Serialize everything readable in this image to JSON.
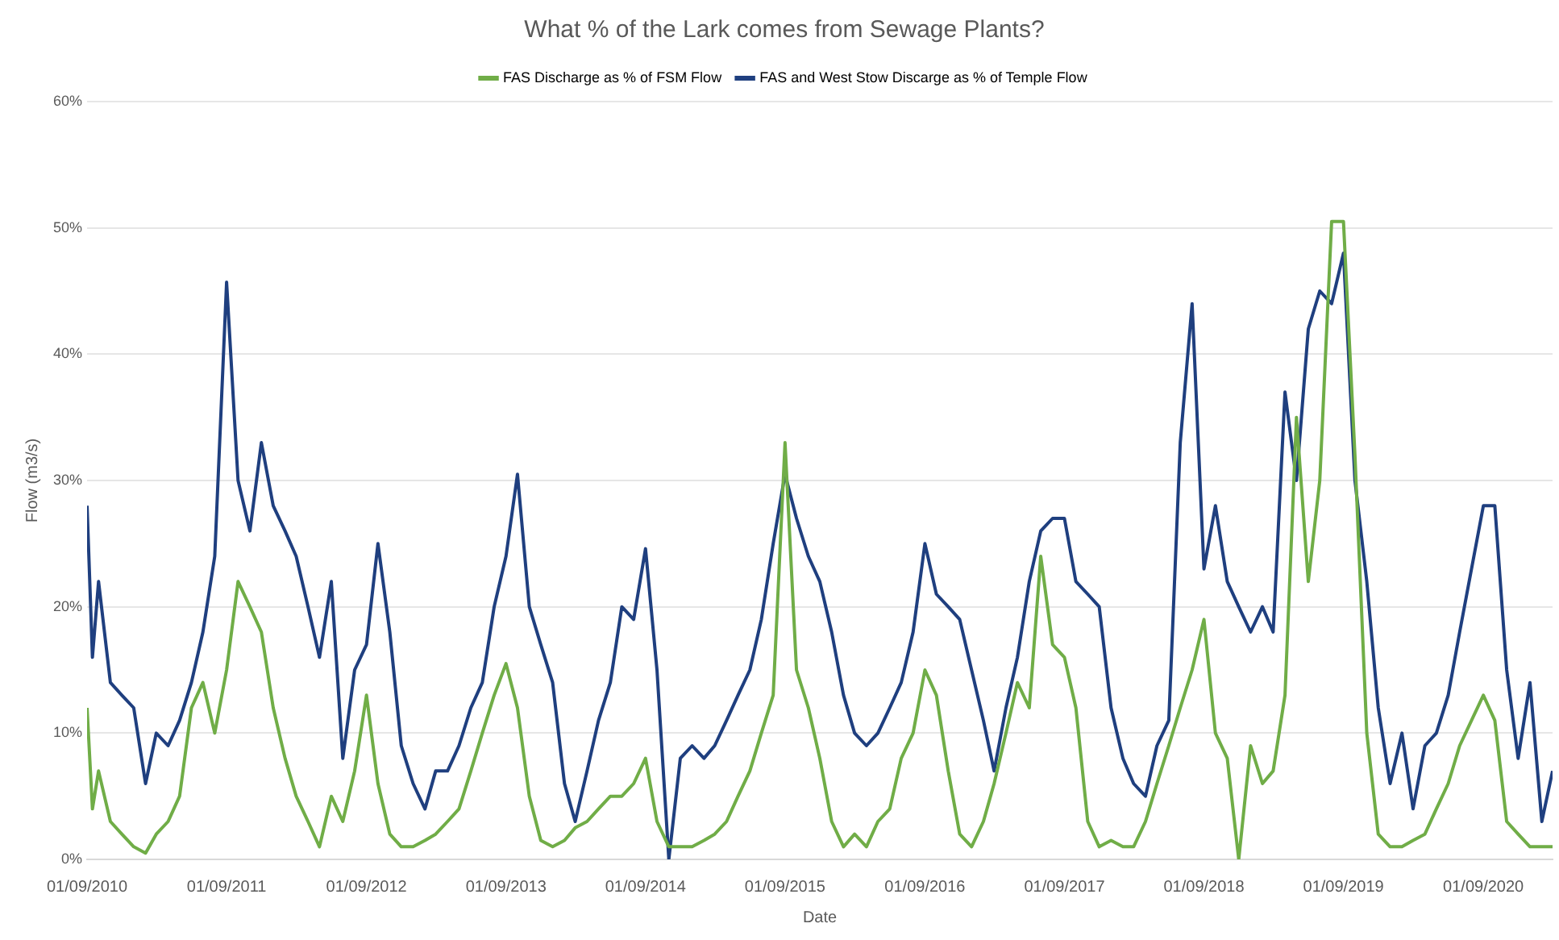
{
  "chart_data": {
    "type": "line",
    "title": "What % of the Lark comes from Sewage Plants?",
    "xlabel": "Date",
    "ylabel": "Flow (m3/s)",
    "x": [
      "2010-09-01",
      "2010-09-15",
      "2010-10-01",
      "2010-11-01",
      "2010-12-01",
      "2011-01-01",
      "2011-02-01",
      "2011-03-01",
      "2011-04-01",
      "2011-05-01",
      "2011-06-01",
      "2011-07-01",
      "2011-08-01",
      "2011-09-01",
      "2011-10-01",
      "2011-11-01",
      "2011-12-01",
      "2012-01-01",
      "2012-02-01",
      "2012-03-01",
      "2012-04-01",
      "2012-05-01",
      "2012-06-01",
      "2012-07-01",
      "2012-08-01",
      "2012-09-01",
      "2012-10-01",
      "2012-11-01",
      "2012-12-01",
      "2013-01-01",
      "2013-02-01",
      "2013-03-01",
      "2013-04-01",
      "2013-05-01",
      "2013-06-01",
      "2013-07-01",
      "2013-08-01",
      "2013-09-01",
      "2013-10-01",
      "2013-11-01",
      "2013-12-01",
      "2014-01-01",
      "2014-02-01",
      "2014-03-01",
      "2014-04-01",
      "2014-05-01",
      "2014-06-01",
      "2014-07-01",
      "2014-08-01",
      "2014-09-01",
      "2014-10-01",
      "2014-11-01",
      "2014-12-01",
      "2015-01-01",
      "2015-02-01",
      "2015-03-01",
      "2015-04-01",
      "2015-05-01",
      "2015-06-01",
      "2015-07-01",
      "2015-08-01",
      "2015-09-01",
      "2015-10-01",
      "2015-11-01",
      "2015-12-01",
      "2016-01-01",
      "2016-02-01",
      "2016-03-01",
      "2016-04-01",
      "2016-05-01",
      "2016-06-01",
      "2016-07-01",
      "2016-08-01",
      "2016-09-01",
      "2016-10-01",
      "2016-11-01",
      "2016-12-01",
      "2017-01-01",
      "2017-02-01",
      "2017-03-01",
      "2017-04-01",
      "2017-05-01",
      "2017-06-01",
      "2017-07-01",
      "2017-08-01",
      "2017-09-01",
      "2017-10-01",
      "2017-11-01",
      "2017-12-01",
      "2018-01-01",
      "2018-02-01",
      "2018-03-01",
      "2018-04-01",
      "2018-05-01",
      "2018-06-01",
      "2018-07-01",
      "2018-08-01",
      "2018-09-01",
      "2018-10-01",
      "2018-11-01",
      "2018-12-01",
      "2019-01-01",
      "2019-02-01",
      "2019-03-01",
      "2019-04-01",
      "2019-05-01",
      "2019-06-01",
      "2019-07-01",
      "2019-08-01",
      "2019-09-01",
      "2019-10-01",
      "2019-11-01",
      "2019-12-01",
      "2020-01-01",
      "2020-02-01",
      "2020-03-01",
      "2020-04-01",
      "2020-05-01",
      "2020-06-01",
      "2020-07-01",
      "2020-08-01",
      "2020-09-01",
      "2020-10-01",
      "2020-11-01",
      "2020-12-01",
      "2021-01-01",
      "2021-02-01",
      "2021-03-01"
    ],
    "series": [
      {
        "name": "FAS Discharge as % of FSM Flow",
        "color": "#70ad47",
        "values": [
          12,
          4,
          7,
          3,
          2,
          1,
          0.5,
          2,
          3,
          5,
          12,
          14,
          10,
          15,
          22,
          20,
          18,
          12,
          8,
          5,
          3,
          1,
          5,
          3,
          7,
          13,
          6,
          2,
          1,
          1,
          1.5,
          2,
          3,
          4,
          7,
          10,
          13,
          15.5,
          12,
          5,
          1.5,
          1,
          1.5,
          2.5,
          3,
          4,
          5,
          5,
          6,
          8,
          3,
          1,
          1,
          1,
          1.5,
          2,
          3,
          5,
          7,
          10,
          13,
          33,
          15,
          12,
          8,
          3,
          1,
          2,
          1,
          3,
          4,
          8,
          10,
          15,
          13,
          7,
          2,
          1,
          3,
          6,
          10,
          14,
          12,
          24,
          17,
          16,
          12,
          3,
          1,
          1.5,
          1,
          1,
          3,
          6,
          9,
          12,
          15,
          19,
          10,
          8,
          0,
          9,
          6,
          7,
          13,
          35,
          22,
          30,
          50.5,
          50.5,
          32,
          10,
          2,
          1,
          1,
          1.5,
          2,
          4,
          6,
          9,
          11,
          13,
          11,
          3,
          2,
          1,
          1,
          1
        ]
      },
      {
        "name": "FAS and West Stow Discarge as % of Temple Flow",
        "color": "#1f3f7f",
        "values": [
          28,
          16,
          22,
          14,
          13,
          12,
          6,
          10,
          9,
          11,
          14,
          18,
          24,
          45.7,
          30,
          26,
          33,
          28,
          26,
          24,
          20,
          16,
          22,
          8,
          15,
          17,
          25,
          18,
          9,
          6,
          4,
          7,
          7,
          9,
          12,
          14,
          20,
          24,
          30.5,
          20,
          17,
          14,
          6,
          3,
          7,
          11,
          14,
          20,
          19,
          24.6,
          15,
          0,
          8,
          9,
          8,
          9,
          11,
          13,
          15,
          19,
          25,
          30.5,
          27,
          24,
          22,
          18,
          13,
          10,
          9,
          10,
          12,
          14,
          18,
          25,
          21,
          20,
          19,
          15,
          11,
          7,
          12,
          16,
          22,
          26,
          27,
          27,
          22,
          21,
          20,
          12,
          8,
          6,
          5,
          9,
          11,
          33,
          44,
          23,
          28,
          22,
          20,
          18,
          20,
          18,
          37,
          30,
          42,
          45,
          44,
          48,
          30,
          22,
          12,
          6,
          10,
          4,
          9,
          10,
          13,
          18,
          23,
          28,
          28,
          15,
          8,
          14,
          3,
          7
        ]
      }
    ],
    "xlim": [
      "2010-09-01",
      "2021-03-01"
    ],
    "xticks": [
      {
        "value": "2010-09-01",
        "label": "01/09/2010"
      },
      {
        "value": "2011-09-01",
        "label": "01/09/2011"
      },
      {
        "value": "2012-09-01",
        "label": "01/09/2012"
      },
      {
        "value": "2013-09-01",
        "label": "01/09/2013"
      },
      {
        "value": "2014-09-01",
        "label": "01/09/2014"
      },
      {
        "value": "2015-09-01",
        "label": "01/09/2015"
      },
      {
        "value": "2016-09-01",
        "label": "01/09/2016"
      },
      {
        "value": "2017-09-01",
        "label": "01/09/2017"
      },
      {
        "value": "2018-09-01",
        "label": "01/09/2018"
      },
      {
        "value": "2019-09-01",
        "label": "01/09/2019"
      },
      {
        "value": "2020-09-01",
        "label": "01/09/2020"
      }
    ],
    "ylim": [
      0,
      60
    ],
    "yticks": [
      {
        "value": 0,
        "label": "0%"
      },
      {
        "value": 10,
        "label": "10%"
      },
      {
        "value": 20,
        "label": "20%"
      },
      {
        "value": 30,
        "label": "30%"
      },
      {
        "value": 40,
        "label": "40%"
      },
      {
        "value": 50,
        "label": "50%"
      },
      {
        "value": 60,
        "label": "60%"
      }
    ],
    "grid": "y",
    "legend": "top",
    "marker": "none",
    "line_style": "solid"
  }
}
